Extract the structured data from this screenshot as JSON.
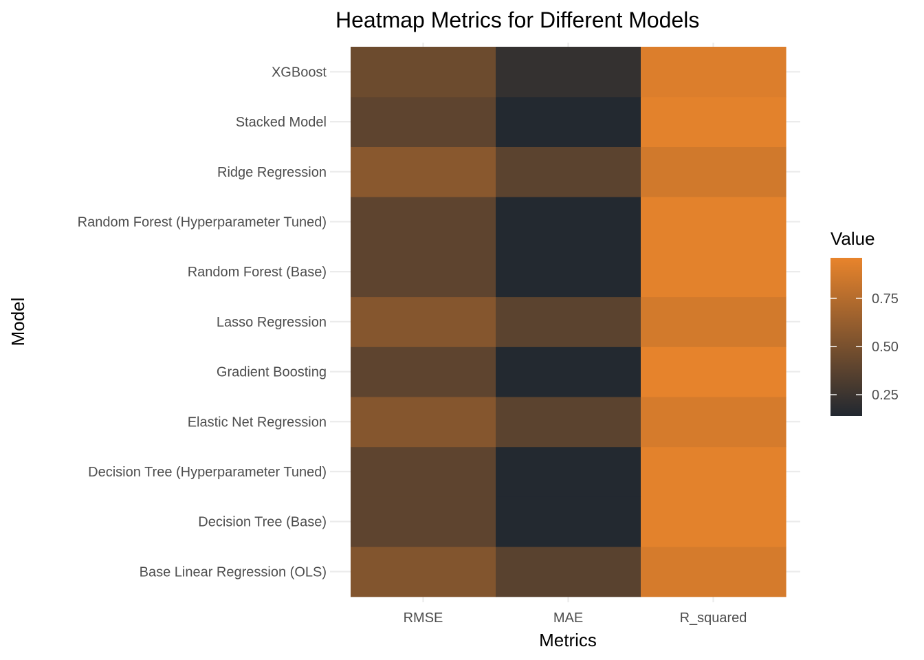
{
  "chart_data": {
    "type": "heatmap",
    "title": "Heatmap Metrics for Different Models",
    "xlabel": "Metrics",
    "ylabel": "Model",
    "x": [
      "RMSE",
      "MAE",
      "R_squared"
    ],
    "y": [
      "Base Linear Regression (OLS)",
      "Decision Tree (Base)",
      "Decision Tree (Hyperparameter Tuned)",
      "Elastic Net Regression",
      "Gradient Boosting",
      "Lasso Regression",
      "Random Forest (Base)",
      "Random Forest (Hyperparameter Tuned)",
      "Ridge Regression",
      "Stacked Model",
      "XGBoost"
    ],
    "values": [
      [
        0.54,
        0.37,
        0.88
      ],
      [
        0.39,
        0.15,
        0.94
      ],
      [
        0.39,
        0.15,
        0.94
      ],
      [
        0.55,
        0.38,
        0.88
      ],
      [
        0.39,
        0.15,
        0.95
      ],
      [
        0.55,
        0.38,
        0.87
      ],
      [
        0.39,
        0.15,
        0.94
      ],
      [
        0.39,
        0.15,
        0.94
      ],
      [
        0.57,
        0.38,
        0.86
      ],
      [
        0.39,
        0.15,
        0.94
      ],
      [
        0.45,
        0.22,
        0.91
      ]
    ],
    "legend": {
      "title": "Value",
      "range": [
        0.14,
        0.96
      ],
      "ticks": [
        0.25,
        0.5,
        0.75
      ],
      "tick_labels": [
        "0.25",
        "0.50",
        "0.75"
      ],
      "position": "right"
    },
    "colors": {
      "low": "#212830",
      "high": "#e8842c"
    },
    "grid": true
  }
}
